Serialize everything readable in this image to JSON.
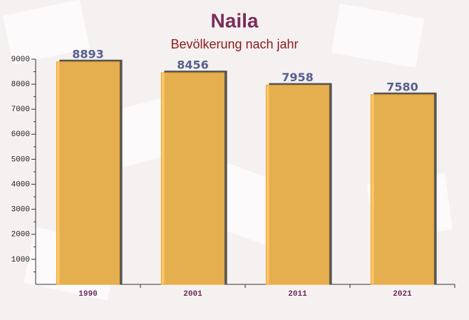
{
  "chart_data": {
    "type": "bar",
    "title": "Naila",
    "subtitle": "Bevölkerung nach jahr",
    "categories": [
      "1990",
      "2001",
      "2011",
      "2021"
    ],
    "values": [
      8893,
      8456,
      7958,
      7580
    ],
    "color": "#ffc04f",
    "ylim": [
      0,
      9000
    ],
    "yticks": [
      1000,
      2000,
      3000,
      4000,
      5000,
      6000,
      7000,
      8000,
      9000
    ],
    "grid": false
  }
}
